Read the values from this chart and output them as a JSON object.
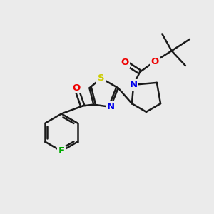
{
  "bg_color": "#ebebeb",
  "bond_color": "#1a1a1a",
  "atom_colors": {
    "S": "#cccc00",
    "N": "#0000ee",
    "O": "#ee0000",
    "F": "#00aa00",
    "C": "#1a1a1a"
  },
  "lw": 1.8,
  "dbl_off": 0.09,
  "fontsize": 9.5
}
